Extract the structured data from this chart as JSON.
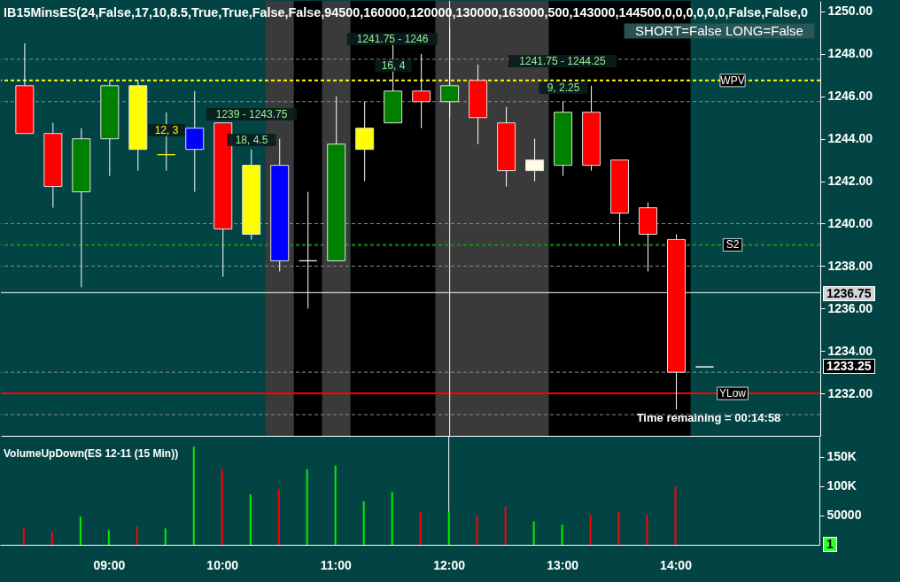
{
  "chart_data": [
    {
      "type": "candlestick",
      "title": "IB15MinsES(24,False,17,10,8.5,True,True,False,False,94500,160000,120000,130000,163000,500,143000,144500,0,0,0,0,0,0,False,False,0",
      "x": [
        8.25,
        8.5,
        8.75,
        9,
        9.25,
        9.5,
        9.75,
        10,
        10.25,
        10.5,
        10.75,
        11,
        11.25,
        11.5,
        11.75,
        12,
        12.25,
        12.5,
        12.75,
        13,
        13.25,
        13.5,
        13.75,
        14,
        14.25
      ],
      "ohlc": [
        [
          1246.5,
          1248.5,
          1244.25,
          1244.25
        ],
        [
          1244.25,
          1244.75,
          1240.75,
          1241.75
        ],
        [
          1241.5,
          1244.5,
          1237,
          1244
        ],
        [
          1244,
          1246.75,
          1242.25,
          1246.5
        ],
        [
          1246.5,
          1246.75,
          1242.5,
          1243.5
        ],
        [
          1243.25,
          1245.25,
          1242.5,
          1243.25
        ],
        [
          1243.5,
          1246.25,
          1241.5,
          1244.5
        ],
        [
          1244.75,
          1244.75,
          1237.5,
          1239.75
        ],
        [
          1242.75,
          1243.5,
          1239.25,
          1239.5
        ],
        [
          1242.75,
          1244,
          1237.75,
          1238.25
        ],
        [
          1238.25,
          1241.5,
          1236,
          1238.25
        ],
        [
          1238.25,
          1246,
          1238.25,
          1243.75
        ],
        [
          1243.5,
          1245.75,
          1242,
          1244.5
        ],
        [
          1244.75,
          1248.5,
          1244.75,
          1246.25
        ],
        [
          1246.25,
          1248,
          1244.5,
          1245.75
        ],
        [
          1245.75,
          1249.25,
          1245,
          1246.5
        ],
        [
          1246.75,
          1247.5,
          1243.75,
          1245
        ],
        [
          1244.75,
          1245.5,
          1241.75,
          1242.5
        ],
        [
          1242.5,
          1244,
          1242,
          1243
        ],
        [
          1242.75,
          1245.75,
          1242.25,
          1245.25
        ],
        [
          1245.25,
          1246.5,
          1242.5,
          1242.75
        ],
        [
          1243,
          1243,
          1239,
          1240.5
        ],
        [
          1240.75,
          1241,
          1237.75,
          1239.5
        ],
        [
          1239.25,
          1239.5,
          1231.25,
          1233
        ],
        [
          1233.25,
          1233.25,
          1233.25,
          1233.25
        ]
      ],
      "colors": [
        "#ff0000",
        "#ff0000",
        "#008000",
        "#008000",
        "#ffff00",
        "#ffff00",
        "#0000ff",
        "#ff0000",
        "#ffff00",
        "#0000ff",
        "#ffffff",
        "#008000",
        "#ffff00",
        "#008000",
        "#ff0000",
        "#008000",
        "#ff0000",
        "#ff0000",
        "#fffbe6",
        "#008000",
        "#ff0000",
        "#ff0000",
        "#ff0000",
        "#ff0000",
        "#ffffff"
      ],
      "xlim": [
        8.04,
        15.27
      ],
      "ylim": [
        1230,
        1250.5
      ],
      "yticks": [
        {
          "value": 1232,
          "label": "1232.00"
        },
        {
          "value": 1234,
          "label": "1234.00"
        },
        {
          "value": 1236,
          "label": "1236.00"
        },
        {
          "value": 1238,
          "label": "1238.00"
        },
        {
          "value": 1240,
          "label": "1240.00"
        },
        {
          "value": 1242,
          "label": "1242.00"
        },
        {
          "value": 1244,
          "label": "1244.00"
        },
        {
          "value": 1246,
          "label": "1246.00"
        },
        {
          "value": 1248,
          "label": "1248.00"
        },
        {
          "value": 1250,
          "label": "1250.00"
        }
      ],
      "tick_labels": "y",
      "bands": [
        {
          "axis": "x",
          "from": 10.375,
          "to": 10.625,
          "color": "#3a3a3a"
        },
        {
          "axis": "x",
          "from": 10.625,
          "to": 10.875,
          "color": "#000000"
        },
        {
          "axis": "x",
          "from": 10.875,
          "to": 11.125,
          "color": "#3a3a3a"
        },
        {
          "axis": "x",
          "from": 11.125,
          "to": 11.875,
          "color": "#000000"
        },
        {
          "axis": "x",
          "from": 11.875,
          "to": 12.875,
          "color": "#3a3a3a"
        },
        {
          "axis": "x",
          "from": 12.875,
          "to": 14.125,
          "color": "#000000"
        }
      ],
      "ref_lines": [
        {
          "axis": "y",
          "value": 1247.75,
          "color": "#8c8c8c",
          "line_style": "dashed"
        },
        {
          "axis": "y",
          "value": 1245.75,
          "color": "#8c8c8c",
          "line_style": "dashed"
        },
        {
          "axis": "y",
          "value": 1240,
          "color": "#8c8c8c",
          "line_style": "dashed"
        },
        {
          "axis": "y",
          "value": 1238,
          "color": "#8c8c8c",
          "line_style": "dashed"
        },
        {
          "axis": "y",
          "value": 1233,
          "color": "#8c8c8c",
          "line_style": "dashed"
        },
        {
          "axis": "y",
          "value": 1231,
          "color": "#8c8c8c",
          "line_style": "dashed"
        },
        {
          "axis": "y",
          "value": 1246.75,
          "label": "WPV",
          "color": "#ffff00",
          "line_style": "dashed"
        },
        {
          "axis": "y",
          "value": 1239,
          "label": "S2",
          "color": "#1a8c1a",
          "line_style": "dashed"
        },
        {
          "axis": "y",
          "value": 1232,
          "label": "YLow",
          "color": "#ff0000"
        },
        {
          "axis": "y",
          "value": 1236.75,
          "color": "#ffffff"
        },
        {
          "axis": "x",
          "value": 12,
          "color": "#ffffff"
        }
      ],
      "annotations": [
        "SHORT=False LONG=False",
        "Time remaining = 00:14:58",
        "1241.75 - 1246",
        "16, 4",
        "1241.75 - 1244.25",
        "9, 2.25",
        "1239 - 1243.75",
        "18, 4.5",
        "12, 3",
        "1236.75",
        "1233.25"
      ]
    },
    {
      "type": "bar",
      "title": "VolumeUpDown(ES 12-11 (15 Min))",
      "x": [
        8.25,
        8.5,
        8.75,
        9,
        9.25,
        9.5,
        9.75,
        10,
        10.25,
        10.5,
        10.75,
        11,
        11.25,
        11.5,
        11.75,
        12,
        12.25,
        12.5,
        12.75,
        13,
        13.25,
        13.5,
        13.75,
        14
      ],
      "values": [
        29000,
        22000,
        48000,
        25000,
        31000,
        28000,
        167000,
        129000,
        86000,
        95000,
        129000,
        135000,
        74000,
        90000,
        56000,
        57000,
        50000,
        65000,
        40000,
        34000,
        51000,
        57000,
        51000,
        99000
      ],
      "colors": [
        "#ff0000",
        "#ff0000",
        "#00ee00",
        "#00ee00",
        "#ff0000",
        "#00ee00",
        "#00ee00",
        "#ff0000",
        "#00ee00",
        "#ff0000",
        "#00ee00",
        "#00ee00",
        "#00ee00",
        "#00ee00",
        "#ff0000",
        "#00ee00",
        "#ff0000",
        "#ff0000",
        "#00ee00",
        "#00ee00",
        "#ff0000",
        "#ff0000",
        "#ff0000",
        "#ff0000"
      ],
      "xlim": [
        8.04,
        15.27
      ],
      "xticks": [
        {
          "value": 9,
          "label": "09:00"
        },
        {
          "value": 10,
          "label": "10:00"
        },
        {
          "value": 11,
          "label": "11:00"
        },
        {
          "value": 12,
          "label": "12:00"
        },
        {
          "value": 13,
          "label": "13:00"
        },
        {
          "value": 14,
          "label": "14:00"
        }
      ],
      "ylim": [
        0,
        184000
      ],
      "yticks": [
        50000,
        {
          "value": 100000,
          "label": "100K"
        },
        {
          "value": 150000,
          "label": "150K"
        }
      ],
      "ref_lines": [
        {
          "axis": "x",
          "value": 12,
          "color": "#ffffff"
        }
      ],
      "annotations": [
        "1"
      ]
    }
  ]
}
